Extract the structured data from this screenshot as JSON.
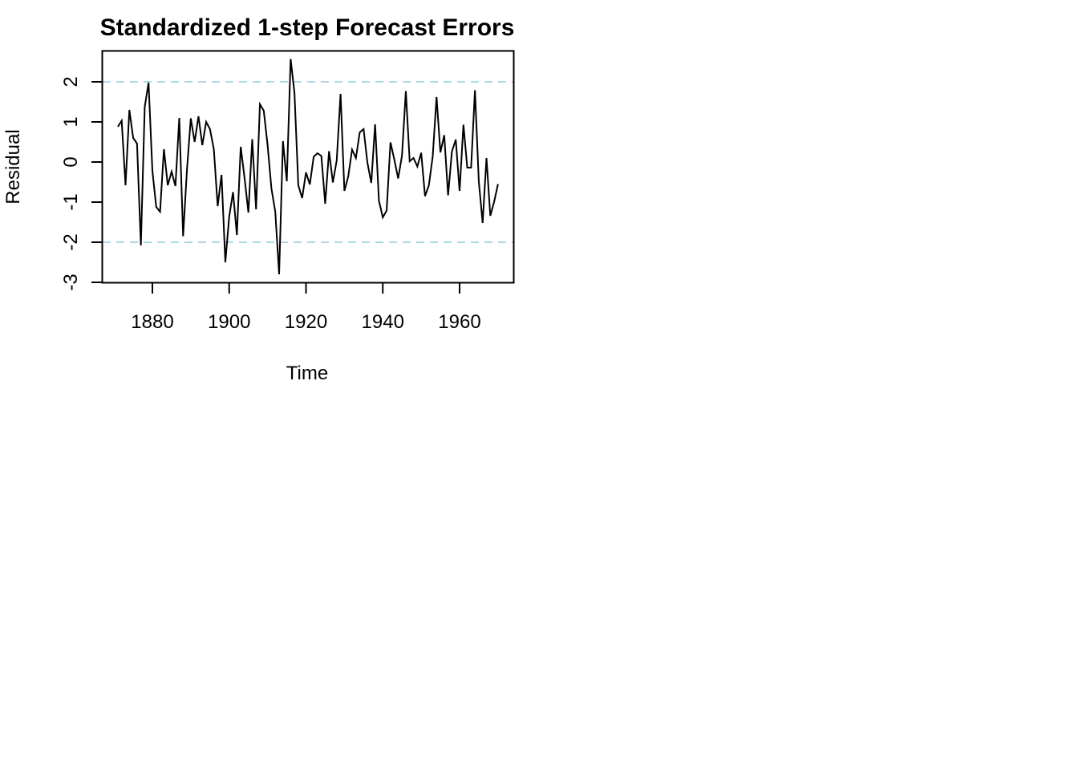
{
  "chart_data": {
    "type": "line",
    "title": "Standardized 1-step Forecast Errors",
    "xlabel": "Time",
    "ylabel": "Residual",
    "xlim": [
      1866,
      1973
    ],
    "ylim": [
      -3,
      2.8
    ],
    "x_ticks": [
      1880,
      1900,
      1920,
      1940,
      1960
    ],
    "y_ticks": [
      -3,
      -2,
      -1,
      0,
      1,
      2
    ],
    "reference_lines": [
      -2,
      2
    ],
    "reference_line_color": "#add8e6",
    "line_color": "#000000",
    "grid": false,
    "series": [
      {
        "x": [
          1871,
          1872,
          1873,
          1874,
          1875,
          1876,
          1877,
          1878,
          1879,
          1880,
          1881,
          1882,
          1883,
          1884,
          1885,
          1886,
          1887,
          1888,
          1889,
          1890,
          1891,
          1892,
          1893,
          1894,
          1895,
          1896,
          1897,
          1898,
          1899,
          1900,
          1901,
          1902,
          1903,
          1904,
          1905,
          1906,
          1907,
          1908,
          1909,
          1910,
          1911,
          1912,
          1913,
          1914,
          1915,
          1916,
          1917,
          1918,
          1919,
          1920,
          1921,
          1922,
          1923,
          1924,
          1925,
          1926,
          1927,
          1928,
          1929,
          1930,
          1931,
          1932,
          1933,
          1934,
          1935,
          1936,
          1937,
          1938,
          1939,
          1940,
          1941,
          1942,
          1943,
          1944,
          1945,
          1946,
          1947,
          1948,
          1949,
          1950,
          1951,
          1952,
          1953,
          1954,
          1955,
          1956,
          1957,
          1958,
          1959,
          1960,
          1961,
          1962,
          1963,
          1964,
          1965,
          1966,
          1967,
          1968,
          1969,
          1970
        ],
        "values": [
          0.88,
          1.03,
          -0.58,
          1.3,
          0.6,
          0.46,
          -2.08,
          1.37,
          1.98,
          -0.22,
          -1.12,
          -1.24,
          0.32,
          -0.58,
          -0.24,
          -0.6,
          1.1,
          -1.85,
          -0.2,
          1.09,
          0.5,
          1.14,
          0.42,
          1.0,
          0.82,
          0.32,
          -1.1,
          -0.32,
          -2.5,
          -1.36,
          -0.75,
          -1.82,
          0.38,
          -0.4,
          -1.26,
          0.57,
          -1.18,
          1.44,
          1.28,
          0.42,
          -0.66,
          -1.24,
          -2.8,
          0.52,
          -0.48,
          2.57,
          1.72,
          -0.58,
          -0.9,
          -0.26,
          -0.56,
          0.13,
          0.22,
          0.15,
          -1.04,
          0.27,
          -0.51,
          0.04,
          1.7,
          -0.72,
          -0.36,
          0.31,
          0.1,
          0.74,
          0.82,
          -0.02,
          -0.52,
          0.94,
          -0.97,
          -1.38,
          -1.21,
          0.49,
          0.06,
          -0.41,
          0.16,
          1.77,
          0.02,
          0.1,
          -0.11,
          0.23,
          -0.85,
          -0.58,
          0.14,
          1.62,
          0.24,
          0.67,
          -0.83,
          0.26,
          0.56,
          -0.72,
          0.93,
          -0.14,
          -0.14,
          1.79,
          -0.48,
          -1.52,
          0.1,
          -1.34,
          -0.99,
          -0.55
        ]
      }
    ]
  }
}
